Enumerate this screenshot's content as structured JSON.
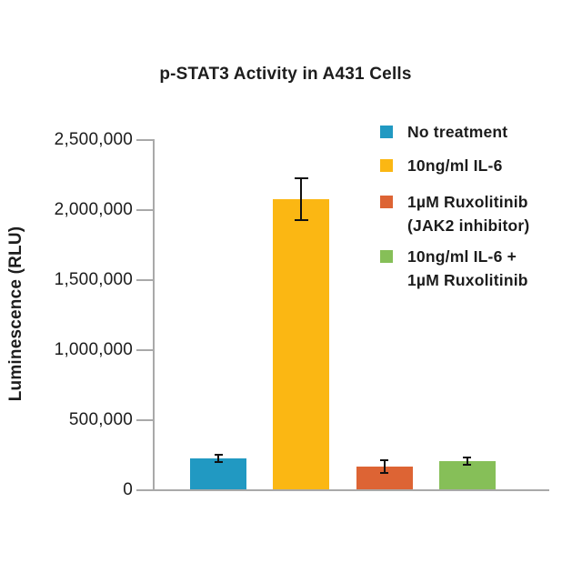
{
  "title": "p-STAT3 Activity in A431 Cells",
  "chart_data": {
    "type": "bar",
    "title": "p-STAT3 Activity in A431 Cells",
    "xlabel": "",
    "ylabel": "Luminescence (RLU)",
    "ylim": [
      0,
      2500000
    ],
    "ytick_values": [
      0,
      500000,
      1000000,
      1500000,
      2000000,
      2500000
    ],
    "ytick_labels": [
      "0",
      "500,000",
      "1,000,000",
      "1,500,000",
      "2,000,000",
      "2,500,000"
    ],
    "grid": false,
    "legend_position": "upper right",
    "categories": [
      "No treatment",
      "10ng/ml IL-6",
      "1µM Ruxolitinib (JAK2 inhibitor)",
      "10ng/ml IL-6 + 1µM Ruxolitinib"
    ],
    "series": [
      {
        "name": "Luminescence (RLU)",
        "values": [
          220000,
          2070000,
          165000,
          200000
        ],
        "errors": [
          25000,
          150000,
          45000,
          25000
        ]
      }
    ],
    "bar_colors": [
      "#2199C2",
      "#FBB713",
      "#DD6434",
      "#86BF58"
    ]
  },
  "legend": {
    "items": [
      {
        "color": "#2199C2",
        "label_lines": [
          "No treatment"
        ]
      },
      {
        "color": "#FBB713",
        "label_lines": [
          "10ng/ml IL-6"
        ]
      },
      {
        "color": "#DD6434",
        "label_lines": [
          "1µM Ruxolitinib",
          "(JAK2 inhibitor)"
        ]
      },
      {
        "color": "#86BF58",
        "label_lines": [
          "10ng/ml IL-6 +",
          "1µM Ruxolitinib"
        ]
      }
    ]
  }
}
